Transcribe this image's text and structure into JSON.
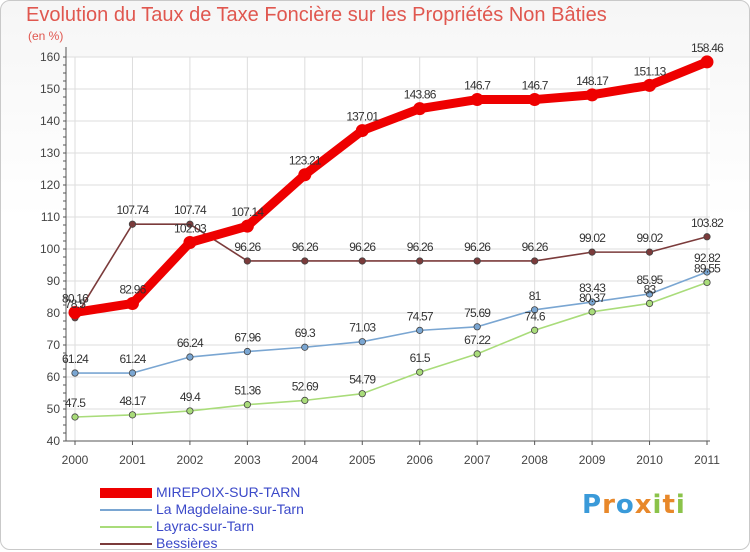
{
  "chart_data": {
    "type": "line",
    "title": "Evolution du Taux de Taxe Foncière sur les Propriétés Non Bâties",
    "subtitle": "(en %)",
    "x": [
      "2000",
      "2001",
      "2002",
      "2003",
      "2004",
      "2005",
      "2006",
      "2007",
      "2008",
      "2009",
      "2010",
      "2011"
    ],
    "ylim": [
      40,
      160
    ],
    "yticks": [
      "40",
      "50",
      "60",
      "70",
      "80",
      "90",
      "100",
      "110",
      "120",
      "130",
      "140",
      "150",
      "160"
    ],
    "legend_position": "bottom-left",
    "series": [
      {
        "name": "MIREPOIX-SUR-TARN",
        "color": "#ee0000",
        "width": "thick",
        "values": [
          80.16,
          82.96,
          102.03,
          107.14,
          123.21,
          137.01,
          143.86,
          146.7,
          146.7,
          148.17,
          151.13,
          158.46
        ],
        "labels": [
          "80.16",
          "82.96",
          "102.03",
          "107.14",
          "123.21",
          "137.01",
          "143.86",
          "146.7",
          "146.7",
          "148.17",
          "151.13",
          "158.46"
        ]
      },
      {
        "name": "La Magdelaine-sur-Tarn",
        "color": "#7aa6d2",
        "width": "thin",
        "values": [
          61.24,
          61.24,
          66.24,
          67.96,
          69.3,
          71.03,
          74.57,
          75.69,
          81,
          83.43,
          85.95,
          92.82
        ],
        "labels": [
          "61.24",
          "61.24",
          "66.24",
          "67.96",
          "69.3",
          "71.03",
          "74.57",
          "75.69",
          "81",
          "83.43",
          "85.95",
          "92.82"
        ]
      },
      {
        "name": "Layrac-sur-Tarn",
        "color": "#a9dc7a",
        "width": "thin",
        "values": [
          47.5,
          48.17,
          49.4,
          51.36,
          52.69,
          54.79,
          61.5,
          67.22,
          74.6,
          80.37,
          83,
          89.55
        ],
        "labels": [
          "47.5",
          "48.17",
          "49.4",
          "51.36",
          "52.69",
          "54.79",
          "61.5",
          "67.22",
          "74.6",
          "80.37",
          "83",
          "89.55"
        ]
      },
      {
        "name": "Bessières",
        "color": "#7b3b3b",
        "width": "thin",
        "values": [
          78.5,
          107.74,
          107.74,
          96.26,
          96.26,
          96.26,
          96.26,
          96.26,
          96.26,
          99.02,
          99.02,
          103.82
        ],
        "labels": [
          "78.5",
          "107.74",
          "107.74",
          "96.26",
          "96.26",
          "96.26",
          "96.26",
          "96.26",
          "96.26",
          "99.02",
          "99.02",
          "103.82"
        ]
      }
    ]
  },
  "logo": {
    "letters": [
      "P",
      "r",
      "o",
      "x",
      "i",
      "t",
      "i"
    ],
    "colors": [
      "#3a9ad9",
      "#e8882a",
      "#3a9ad9",
      "#e8882a",
      "#8bc34a",
      "#e8882a",
      "#8bc34a"
    ]
  }
}
